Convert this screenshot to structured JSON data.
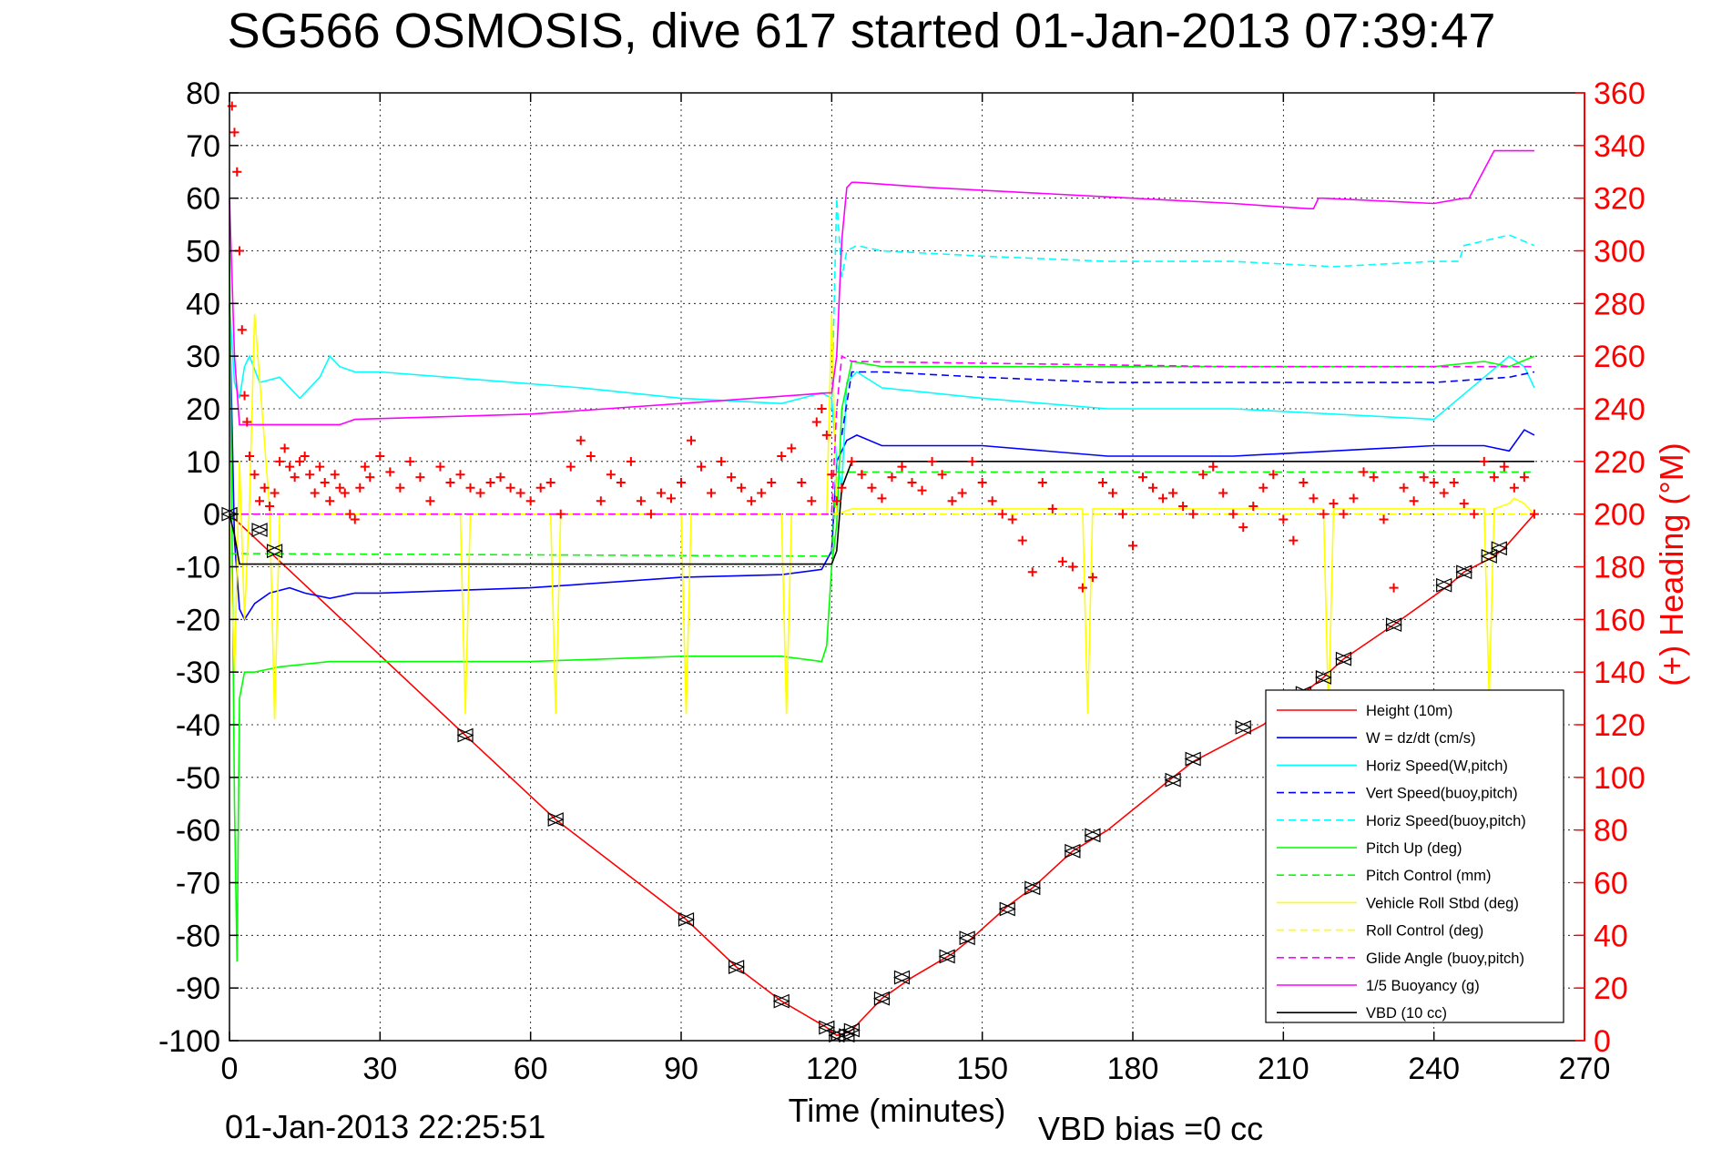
{
  "title": "SG566 OSMOSIS, dive 617 started 01-Jan-2013 07:39:47",
  "footer": {
    "timestamp": "01-Jan-2013 22:25:51",
    "vbd_bias": "VBD bias =0 cc"
  },
  "chart_data": {
    "type": "line",
    "title": "SG566 OSMOSIS, dive 617 started 01-Jan-2013 07:39:47",
    "xlabel": "Time (minutes)",
    "ylabel": "",
    "y2label": "(+) Heading (°M)",
    "xlim": [
      0,
      270
    ],
    "ylim": [
      -100,
      80
    ],
    "y2lim": [
      0,
      360
    ],
    "xticks": [
      "0",
      "30",
      "60",
      "90",
      "120",
      "150",
      "180",
      "210",
      "240",
      "270"
    ],
    "yticks": [
      "80",
      "70",
      "60",
      "50",
      "40",
      "30",
      "20",
      "10",
      "0",
      "-10",
      "-20",
      "-30",
      "-40",
      "-50",
      "-60",
      "-70",
      "-80",
      "-90",
      "-100"
    ],
    "y2ticks": [
      "360",
      "340",
      "320",
      "300",
      "280",
      "260",
      "240",
      "220",
      "200",
      "180",
      "160",
      "140",
      "120",
      "100",
      "80",
      "60",
      "40",
      "20",
      "0"
    ],
    "grid": true,
    "legend_position": "bottom-right",
    "colors": {
      "height": "#ff0000",
      "w": "#0000ff",
      "hspeed": "#00ffff",
      "pitch": "#00ff00",
      "roll": "#ffff00",
      "glide": "#ff00ff",
      "vbd": "#000000",
      "heading": "#ff0000",
      "markers": "#000000"
    },
    "series": [
      {
        "name": "Height (10m)",
        "color": "#ff0000",
        "dash": false,
        "x": [
          0,
          47,
          65,
          91,
          101,
          110,
          119,
          121,
          123,
          124,
          130,
          136,
          144,
          148,
          155,
          160,
          168,
          175,
          188,
          192,
          206,
          214,
          218,
          222,
          232,
          243,
          246,
          252,
          254,
          260
        ],
        "y": [
          0,
          -42,
          -58,
          -77,
          -86,
          -92.5,
          -97.5,
          -99,
          -98.5,
          -98,
          -92,
          -88,
          -83.5,
          -80.5,
          -74.5,
          -71,
          -64,
          -60,
          -50,
          -47,
          -40,
          -34,
          -31,
          -27.5,
          -21,
          -13.5,
          -11,
          -8,
          -6.5,
          0
        ]
      },
      {
        "name": "W = dz/dt (cm/s)",
        "color": "#0000ff",
        "dash": false,
        "x": [
          0,
          1,
          2,
          3,
          5,
          8,
          12,
          15,
          20,
          25,
          30,
          60,
          90,
          110,
          118,
          120,
          121,
          123,
          125,
          130,
          150,
          175,
          200,
          240,
          250,
          255,
          258,
          260
        ],
        "y": [
          40,
          -5,
          -18,
          -20,
          -17,
          -15,
          -14,
          -15,
          -16,
          -15,
          -15,
          -14,
          -12,
          -11.5,
          -10.5,
          -7,
          10,
          14,
          15,
          13,
          13,
          11,
          11,
          13,
          13,
          12,
          16,
          15
        ]
      },
      {
        "name": "Horiz Speed(W,pitch)",
        "color": "#00ffff",
        "dash": false,
        "x": [
          0,
          1,
          2,
          3,
          4,
          6,
          10,
          14,
          16,
          18,
          20,
          22,
          25,
          30,
          50,
          70,
          90,
          110,
          118,
          120,
          121,
          122,
          123,
          125,
          130,
          150,
          175,
          200,
          240,
          250,
          255,
          258,
          260
        ],
        "y": [
          40,
          25,
          22,
          28,
          30,
          25,
          26,
          22,
          24,
          26,
          30,
          28,
          27,
          27,
          25.5,
          24,
          22,
          21,
          23,
          22,
          10,
          5,
          25,
          27,
          24,
          22,
          20,
          20,
          18,
          26,
          30,
          28,
          24
        ]
      },
      {
        "name": "Vert Speed(buoy,pitch)",
        "color": "#0000ff",
        "dash": true,
        "x": [
          122,
          124,
          130,
          150,
          175,
          200,
          240,
          255,
          260
        ],
        "y": [
          15,
          27,
          27,
          26,
          25,
          25,
          25,
          26,
          27
        ]
      },
      {
        "name": "Horiz Speed(buoy,pitch)",
        "color": "#00ffff",
        "dash": true,
        "x": [
          120,
          121,
          122,
          123,
          125,
          130,
          150,
          175,
          200,
          220,
          240,
          245,
          246,
          255,
          260
        ],
        "y": [
          20,
          60,
          45,
          50,
          51,
          50,
          49,
          48,
          48,
          47,
          48,
          48,
          51,
          53,
          51
        ]
      },
      {
        "name": "Pitch Up (deg)",
        "color": "#00ff00",
        "dash": false,
        "x": [
          0,
          1,
          1.5,
          2,
          3,
          5,
          10,
          20,
          30,
          60,
          90,
          110,
          118,
          119,
          120,
          121,
          122,
          124,
          130,
          150,
          200,
          240,
          250,
          255,
          260
        ],
        "y": [
          50,
          -55,
          -85,
          -35,
          -30,
          -30,
          -29,
          -28,
          -28,
          -28,
          -27,
          -27,
          -28,
          -25,
          -10,
          -2,
          20,
          29,
          28,
          28,
          28,
          28,
          29,
          28,
          30
        ]
      },
      {
        "name": "Pitch Control (mm)",
        "color": "#00ff00",
        "dash": true,
        "x": [
          0,
          2,
          120,
          121,
          260
        ],
        "y": [
          -7.5,
          -7.5,
          -8,
          8,
          8
        ]
      },
      {
        "name": "Vehicle Roll Stbd (deg)",
        "color": "#ffff00",
        "dash": false,
        "x": [
          0,
          1,
          2,
          3,
          4,
          5,
          8,
          9,
          10,
          30,
          46,
          47,
          48,
          64,
          65,
          66,
          90,
          91,
          92,
          110,
          111,
          112,
          119,
          120,
          121,
          124,
          130,
          170,
          171,
          172,
          218,
          219,
          220,
          250,
          251,
          252,
          255,
          256,
          258,
          260
        ],
        "y": [
          -2,
          -30,
          10,
          -20,
          2,
          38,
          1,
          -39,
          0,
          0,
          0,
          -38,
          0,
          0,
          -38,
          0,
          0,
          -38,
          0,
          0,
          -38,
          0,
          0,
          38,
          0,
          1,
          1,
          1,
          -38,
          1,
          1,
          -38,
          1,
          1,
          -35,
          1,
          2,
          3,
          2,
          0
        ]
      },
      {
        "name": "Roll Control (deg)",
        "color": "#ffff00",
        "dash": true,
        "x": [
          0,
          260
        ],
        "y": [
          0,
          0
        ]
      },
      {
        "name": "Glide Angle (buoy,pitch)",
        "color": "#ff00ff",
        "dash": true,
        "x": [
          0,
          120,
          121,
          122,
          124,
          200,
          240,
          260
        ],
        "y": [
          0,
          0,
          20,
          30,
          29,
          28,
          28,
          28
        ]
      },
      {
        "name": "1/5 Buoyancy (g)",
        "color": "#ff00ff",
        "dash": false,
        "x": [
          0,
          1,
          2,
          22,
          25,
          60,
          90,
          119,
          120,
          121,
          122,
          123,
          124,
          125,
          140,
          160,
          180,
          200,
          215,
          216,
          217,
          218,
          240,
          246,
          247,
          252,
          260
        ],
        "y": [
          60,
          30,
          17,
          17,
          18,
          19,
          21,
          23,
          23,
          30,
          52,
          62,
          63,
          63,
          62,
          61,
          60,
          59,
          58,
          58,
          60,
          60,
          59,
          60,
          60,
          69,
          69
        ]
      },
      {
        "name": "VBD (10 cc)",
        "color": "#000000",
        "dash": false,
        "x": [
          0,
          1,
          2,
          3,
          120,
          121,
          122,
          124,
          260
        ],
        "y": [
          0,
          -4,
          -9.5,
          -9.5,
          -9.5,
          -7,
          5,
          10,
          10
        ]
      }
    ],
    "heading_series": {
      "name": "(+) Heading",
      "axis": "right",
      "color": "#ff0000",
      "marker": "+",
      "x": [
        0.5,
        1,
        1.5,
        2,
        2.5,
        3,
        3.5,
        4,
        5,
        6,
        7,
        8,
        9,
        10,
        11,
        12,
        13,
        14,
        15,
        16,
        17,
        18,
        19,
        20,
        21,
        22,
        23,
        24,
        25,
        26,
        27,
        28,
        30,
        32,
        34,
        36,
        38,
        40,
        42,
        44,
        46,
        48,
        50,
        52,
        54,
        56,
        58,
        60,
        62,
        64,
        66,
        68,
        70,
        72,
        74,
        76,
        78,
        80,
        82,
        84,
        86,
        88,
        90,
        92,
        94,
        96,
        98,
        100,
        102,
        104,
        106,
        108,
        110,
        112,
        114,
        116,
        117,
        118,
        119,
        120,
        121,
        122,
        124,
        126,
        128,
        130,
        132,
        134,
        136,
        138,
        140,
        142,
        144,
        146,
        148,
        150,
        152,
        154,
        156,
        158,
        160,
        162,
        164,
        166,
        168,
        170,
        172,
        174,
        176,
        178,
        180,
        182,
        184,
        186,
        188,
        190,
        192,
        194,
        196,
        198,
        200,
        202,
        204,
        206,
        208,
        210,
        212,
        214,
        216,
        218,
        220,
        222,
        224,
        226,
        228,
        230,
        232,
        234,
        236,
        238,
        240,
        242,
        244,
        246,
        248,
        250,
        252,
        254,
        256,
        258,
        260
      ],
      "y": [
        355,
        345,
        330,
        300,
        270,
        245,
        235,
        222,
        215,
        205,
        210,
        203,
        208,
        220,
        225,
        218,
        214,
        220,
        222,
        215,
        208,
        218,
        212,
        205,
        215,
        210,
        208,
        200,
        198,
        210,
        218,
        214,
        222,
        216,
        210,
        220,
        214,
        205,
        218,
        212,
        215,
        210,
        208,
        212,
        214,
        210,
        208,
        205,
        210,
        212,
        200,
        218,
        228,
        222,
        205,
        215,
        212,
        220,
        205,
        200,
        208,
        206,
        212,
        228,
        218,
        208,
        220,
        214,
        210,
        205,
        208,
        212,
        222,
        225,
        212,
        205,
        235,
        240,
        230,
        215,
        205,
        210,
        220,
        215,
        210,
        206,
        214,
        218,
        212,
        209,
        220,
        215,
        205,
        208,
        220,
        212,
        205,
        200,
        198,
        190,
        178,
        212,
        202,
        182,
        180,
        172,
        176,
        212,
        208,
        200,
        188,
        214,
        210,
        206,
        208,
        203,
        200,
        215,
        218,
        208,
        200,
        195,
        203,
        210,
        215,
        198,
        190,
        212,
        206,
        200,
        204,
        200,
        206,
        216,
        214,
        198,
        172,
        210,
        205,
        214,
        212,
        208,
        212,
        204,
        200,
        220,
        214,
        218,
        210,
        214,
        200
      ]
    },
    "waypoint_markers": {
      "x": [
        0,
        6,
        9,
        47,
        65,
        91,
        101,
        110,
        119,
        121,
        123,
        124,
        130,
        134,
        143,
        147,
        155,
        160,
        168,
        172,
        188,
        192,
        202,
        214,
        218,
        222,
        232,
        242,
        246,
        251,
        253
      ],
      "y": [
        0,
        -3,
        -7,
        -42,
        -58,
        -77,
        -86,
        -92.5,
        -97.5,
        -99,
        -99,
        -98,
        -92,
        -88,
        -84,
        -80.5,
        -75,
        -71,
        -64,
        -61,
        -50.5,
        -46.5,
        -40.5,
        -34,
        -31,
        -27.5,
        -21,
        -13.5,
        -11,
        -8,
        -6.5
      ]
    }
  }
}
